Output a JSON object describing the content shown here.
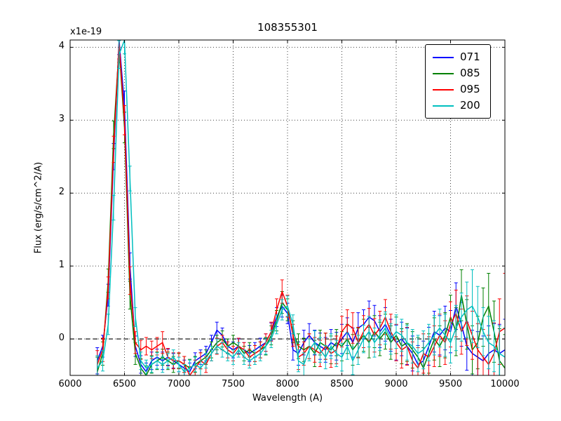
{
  "chart_data": {
    "type": "line",
    "title": "108355301",
    "xlabel": "Wavelength (A)",
    "ylabel": "Flux (erg/s/cm^2/A)",
    "y_offset_label": "x1e-19",
    "xlim": [
      6000,
      10000
    ],
    "ylim": [
      -0.5,
      4.1
    ],
    "xticks": [
      6000,
      6500,
      7000,
      7500,
      8000,
      8500,
      9000,
      9500,
      10000
    ],
    "yticks": [
      0,
      1,
      2,
      3,
      4
    ],
    "grid": {
      "show": true,
      "color": "#000000",
      "style": "dotted"
    },
    "hline": {
      "y": 0,
      "color": "#000000",
      "style": "dashed"
    },
    "legend_position": "upper right",
    "x": [
      6250,
      6300,
      6350,
      6400,
      6450,
      6500,
      6550,
      6600,
      6650,
      6700,
      6750,
      6800,
      6850,
      6900,
      6950,
      7000,
      7050,
      7100,
      7150,
      7200,
      7250,
      7300,
      7350,
      7400,
      7450,
      7500,
      7550,
      7600,
      7650,
      7700,
      7750,
      7800,
      7850,
      7900,
      7950,
      8000,
      8050,
      8100,
      8150,
      8200,
      8250,
      8300,
      8350,
      8400,
      8450,
      8500,
      8550,
      8600,
      8650,
      8700,
      8750,
      8800,
      8850,
      8900,
      8950,
      9000,
      9050,
      9100,
      9150,
      9200,
      9250,
      9300,
      9350,
      9400,
      9450,
      9500,
      9550,
      9600,
      9650,
      9700,
      9750,
      9800,
      9850,
      9900,
      9950,
      10000
    ],
    "series": [
      {
        "name": "071",
        "color": "#0000ff",
        "values": [
          -0.3,
          -0.1,
          0.6,
          2.5,
          4.1,
          3.2,
          1.0,
          -0.1,
          -0.35,
          -0.45,
          -0.3,
          -0.25,
          -0.3,
          -0.25,
          -0.3,
          -0.35,
          -0.4,
          -0.45,
          -0.3,
          -0.25,
          -0.2,
          -0.05,
          0.12,
          0.05,
          -0.1,
          -0.15,
          -0.1,
          -0.15,
          -0.2,
          -0.15,
          -0.1,
          -0.05,
          0.1,
          0.3,
          0.45,
          0.35,
          -0.15,
          -0.2,
          -0.05,
          0.05,
          -0.05,
          -0.1,
          -0.15,
          -0.05,
          -0.1,
          0.0,
          0.1,
          -0.05,
          0.15,
          0.2,
          0.3,
          0.25,
          0.1,
          0.2,
          0.05,
          -0.05,
          0.0,
          -0.1,
          -0.2,
          -0.35,
          -0.3,
          -0.1,
          0.1,
          0.05,
          0.15,
          0.1,
          0.45,
          0.2,
          -0.1,
          -0.2,
          -0.25,
          -0.3,
          -0.2,
          -0.15,
          -0.2,
          -0.15
        ],
        "err": [
          0.18,
          0.15,
          0.15,
          0.18,
          0.2,
          0.2,
          0.18,
          0.14,
          0.12,
          0.12,
          0.12,
          0.11,
          0.12,
          0.11,
          0.1,
          0.1,
          0.11,
          0.12,
          0.11,
          0.1,
          0.1,
          0.1,
          0.11,
          0.1,
          0.1,
          0.11,
          0.1,
          0.1,
          0.11,
          0.1,
          0.11,
          0.12,
          0.12,
          0.13,
          0.15,
          0.14,
          0.14,
          0.16,
          0.17,
          0.16,
          0.17,
          0.18,
          0.17,
          0.18,
          0.19,
          0.2,
          0.19,
          0.2,
          0.21,
          0.2,
          0.22,
          0.21,
          0.22,
          0.23,
          0.22,
          0.24,
          0.23,
          0.25,
          0.24,
          0.26,
          0.27,
          0.26,
          0.28,
          0.27,
          0.3,
          0.29,
          0.32,
          0.3,
          0.33,
          0.32,
          0.35,
          0.34,
          0.38,
          0.36,
          0.4,
          0.42
        ]
      },
      {
        "name": "085",
        "color": "#008000",
        "values": [
          -0.45,
          -0.2,
          0.8,
          2.8,
          4.0,
          2.9,
          0.6,
          -0.2,
          -0.4,
          -0.5,
          -0.35,
          -0.3,
          -0.25,
          -0.3,
          -0.35,
          -0.3,
          -0.35,
          -0.4,
          -0.35,
          -0.3,
          -0.25,
          -0.15,
          -0.05,
          0.0,
          -0.1,
          -0.05,
          -0.1,
          -0.2,
          -0.15,
          -0.2,
          -0.15,
          -0.1,
          0.05,
          0.25,
          0.5,
          0.4,
          0.1,
          -0.1,
          -0.15,
          -0.1,
          -0.2,
          -0.05,
          -0.1,
          -0.15,
          -0.05,
          -0.1,
          0.0,
          -0.15,
          -0.05,
          0.05,
          -0.05,
          0.1,
          0.0,
          0.1,
          -0.05,
          0.05,
          -0.1,
          -0.05,
          -0.15,
          -0.25,
          -0.4,
          -0.2,
          0.0,
          -0.1,
          0.05,
          0.3,
          0.1,
          0.6,
          0.2,
          -0.15,
          -0.05,
          0.3,
          0.45,
          0.1,
          -0.3,
          -0.4
        ],
        "err": [
          0.2,
          0.16,
          0.16,
          0.19,
          0.21,
          0.21,
          0.19,
          0.15,
          0.13,
          0.13,
          0.12,
          0.12,
          0.11,
          0.12,
          0.11,
          0.1,
          0.11,
          0.12,
          0.11,
          0.11,
          0.1,
          0.11,
          0.1,
          0.11,
          0.1,
          0.1,
          0.11,
          0.1,
          0.1,
          0.11,
          0.11,
          0.12,
          0.13,
          0.14,
          0.15,
          0.15,
          0.15,
          0.17,
          0.16,
          0.17,
          0.18,
          0.17,
          0.18,
          0.19,
          0.18,
          0.2,
          0.2,
          0.21,
          0.2,
          0.22,
          0.21,
          0.22,
          0.23,
          0.24,
          0.23,
          0.25,
          0.24,
          0.26,
          0.25,
          0.27,
          0.28,
          0.27,
          0.29,
          0.28,
          0.31,
          0.3,
          0.33,
          0.35,
          0.34,
          0.33,
          0.36,
          0.4,
          0.45,
          0.42,
          0.44,
          0.46
        ]
      },
      {
        "name": "095",
        "color": "#ff0000",
        "values": [
          -0.35,
          -0.15,
          0.7,
          2.6,
          4.05,
          3.0,
          0.8,
          -0.05,
          -0.15,
          -0.1,
          -0.15,
          -0.1,
          -0.05,
          -0.25,
          -0.3,
          -0.3,
          -0.35,
          -0.5,
          -0.4,
          -0.3,
          -0.35,
          -0.2,
          -0.1,
          -0.05,
          -0.15,
          -0.2,
          -0.1,
          -0.15,
          -0.25,
          -0.2,
          -0.15,
          -0.05,
          0.1,
          0.4,
          0.65,
          0.45,
          0.05,
          -0.25,
          -0.2,
          -0.1,
          -0.15,
          -0.2,
          -0.1,
          -0.2,
          -0.15,
          0.1,
          0.2,
          0.15,
          -0.05,
          0.1,
          0.2,
          0.05,
          0.15,
          0.3,
          0.1,
          -0.05,
          -0.15,
          -0.1,
          -0.3,
          -0.4,
          -0.2,
          -0.25,
          -0.1,
          0.05,
          -0.05,
          0.2,
          0.35,
          0.1,
          0.25,
          0.05,
          -0.15,
          -0.25,
          -0.35,
          -0.2,
          0.1,
          0.15
        ],
        "err": [
          0.19,
          0.16,
          0.15,
          0.18,
          0.21,
          0.2,
          0.19,
          0.15,
          0.13,
          0.12,
          0.12,
          0.12,
          0.15,
          0.12,
          0.11,
          0.11,
          0.11,
          0.12,
          0.11,
          0.11,
          0.11,
          0.1,
          0.11,
          0.1,
          0.11,
          0.1,
          0.11,
          0.1,
          0.11,
          0.11,
          0.11,
          0.12,
          0.13,
          0.15,
          0.16,
          0.15,
          0.15,
          0.17,
          0.16,
          0.17,
          0.17,
          0.18,
          0.18,
          0.19,
          0.19,
          0.21,
          0.2,
          0.21,
          0.21,
          0.22,
          0.22,
          0.23,
          0.23,
          0.24,
          0.24,
          0.25,
          0.25,
          0.26,
          0.26,
          0.28,
          0.27,
          0.28,
          0.28,
          0.29,
          0.3,
          0.31,
          0.32,
          0.31,
          0.34,
          0.33,
          0.36,
          0.38,
          0.4,
          0.42,
          0.45,
          0.75
        ]
      },
      {
        "name": "200",
        "color": "#00bfbf",
        "values": [
          -0.4,
          -0.3,
          0.2,
          1.8,
          3.9,
          4.1,
          2.2,
          0.3,
          -0.3,
          -0.4,
          -0.35,
          -0.3,
          -0.35,
          -0.3,
          -0.25,
          -0.35,
          -0.45,
          -0.4,
          -0.35,
          -0.4,
          -0.3,
          -0.2,
          -0.1,
          -0.15,
          -0.2,
          -0.25,
          -0.15,
          -0.25,
          -0.3,
          -0.25,
          -0.2,
          -0.1,
          0.0,
          0.2,
          0.4,
          0.45,
          0.2,
          -0.3,
          -0.35,
          -0.15,
          -0.05,
          -0.15,
          -0.25,
          -0.1,
          -0.2,
          -0.25,
          -0.1,
          -0.3,
          -0.15,
          0.0,
          0.1,
          -0.05,
          0.05,
          0.15,
          0.0,
          0.1,
          0.05,
          -0.05,
          -0.1,
          -0.2,
          -0.15,
          -0.05,
          0.05,
          0.15,
          0.05,
          -0.05,
          0.15,
          0.3,
          0.4,
          0.45,
          0.3,
          0.1,
          -0.05,
          -0.1,
          -0.2,
          -0.25
        ],
        "err": [
          0.17,
          0.14,
          0.14,
          0.17,
          0.19,
          0.19,
          0.17,
          0.13,
          0.12,
          0.11,
          0.11,
          0.11,
          0.11,
          0.1,
          0.1,
          0.1,
          0.1,
          0.11,
          0.1,
          0.1,
          0.1,
          0.1,
          0.1,
          0.1,
          0.1,
          0.1,
          0.1,
          0.1,
          0.1,
          0.1,
          0.1,
          0.11,
          0.12,
          0.13,
          0.14,
          0.14,
          0.13,
          0.15,
          0.16,
          0.15,
          0.16,
          0.17,
          0.16,
          0.17,
          0.18,
          0.19,
          0.18,
          0.19,
          0.2,
          0.19,
          0.21,
          0.2,
          0.21,
          0.22,
          0.21,
          0.23,
          0.22,
          0.24,
          0.23,
          0.25,
          0.26,
          0.25,
          0.27,
          0.26,
          0.29,
          0.28,
          0.31,
          0.33,
          0.38,
          0.5,
          0.42,
          0.33,
          0.36,
          0.35,
          0.38,
          0.4
        ]
      }
    ]
  }
}
